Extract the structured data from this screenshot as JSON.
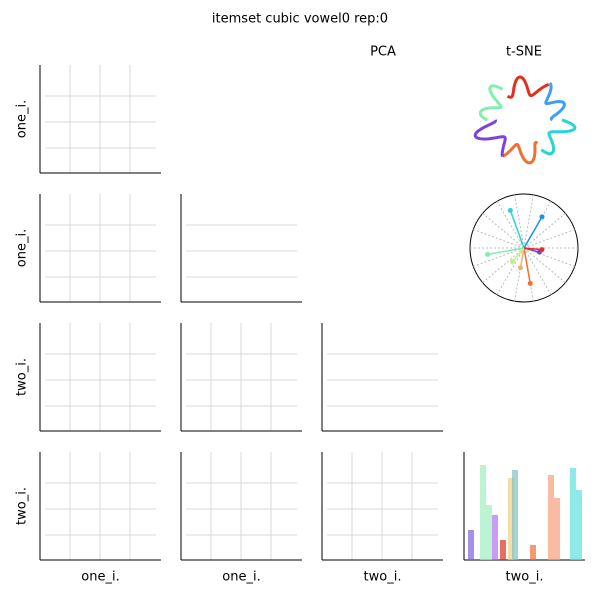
{
  "title": "itemset cubic vowel0 rep:0",
  "column_headers": [
    "PCA",
    "t-SNE"
  ],
  "row_labels": [
    "one_i.",
    "one_i.",
    "two_i.",
    "two_i."
  ],
  "column_labels": [
    "one_i.",
    "one_i.",
    "two_i.",
    "two_i."
  ]
}
